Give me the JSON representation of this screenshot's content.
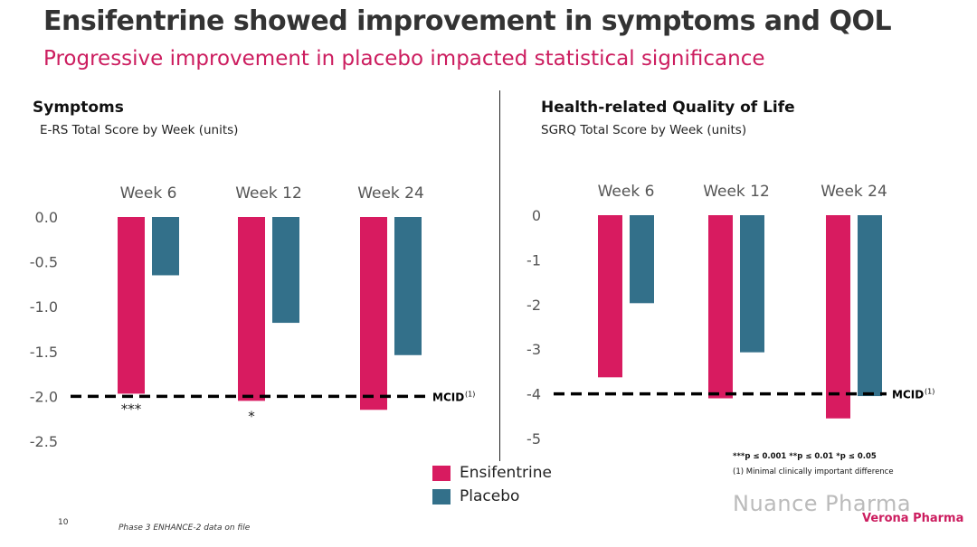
{
  "header": {
    "title": "Ensifentrine showed improvement in symptoms and QOL",
    "subtitle": "Progressive improvement in placebo impacted statistical significance"
  },
  "colors": {
    "ensifentrine": "#d81b60",
    "placebo": "#33708a",
    "accent": "#cc1d5f"
  },
  "panels": {
    "left": {
      "title": "Symptoms",
      "subtitle": "E-RS Total Score by Week (units)"
    },
    "right": {
      "title": "Health-related Quality of Life",
      "subtitle": "SGRQ Total Score by Week (units)"
    }
  },
  "legend": {
    "ensifentrine": "Ensifentrine",
    "placebo": "Placebo"
  },
  "footnotes": {
    "significance": "***p ≤ 0.001 **p ≤ 0.01 *p ≤ 0.05",
    "mcid": "(1) Minimal clinically important difference"
  },
  "footer": {
    "page_number": "10",
    "source": "Phase 3 ENHANCE-2 data on file",
    "watermark": "Nuance Pharma",
    "brand": "Verona Pharma"
  },
  "chart_data": [
    {
      "type": "bar",
      "categories": [
        "Week 6",
        "Week 12",
        "Week 24"
      ],
      "series": [
        {
          "name": "Ensifentrine",
          "values": [
            -1.97,
            -2.05,
            -2.15
          ]
        },
        {
          "name": "Placebo",
          "values": [
            -0.65,
            -1.18,
            -1.54
          ]
        }
      ],
      "ylim": [
        -2.5,
        0.0
      ],
      "yticks": [
        "0.0",
        "-0.5",
        "-1.0",
        "-1.5",
        "-2.0",
        "-2.5"
      ],
      "yticks_values": [
        0,
        -0.5,
        -1.0,
        -1.5,
        -2.0,
        -2.5
      ],
      "reference_line": {
        "label": "MCID",
        "superscript": "(1)",
        "value": -2.0
      },
      "annotations": [
        {
          "category": "Week 6",
          "text": "***"
        },
        {
          "category": "Week 12",
          "text": "*"
        }
      ]
    },
    {
      "type": "bar",
      "categories": [
        "Week 6",
        "Week 12",
        "Week 24"
      ],
      "series": [
        {
          "name": "Ensifentrine",
          "values": [
            -3.63,
            -4.1,
            -4.55
          ]
        },
        {
          "name": "Placebo",
          "values": [
            -1.97,
            -3.07,
            -4.05
          ]
        }
      ],
      "ylim": [
        -5,
        0
      ],
      "yticks": [
        "0",
        "-1",
        "-2",
        "-3",
        "-4",
        "-5"
      ],
      "yticks_values": [
        0,
        -1,
        -2,
        -3,
        -4,
        -5
      ],
      "reference_line": {
        "label": "MCID",
        "superscript": "(1)",
        "value": -4.0
      },
      "annotations": []
    }
  ]
}
